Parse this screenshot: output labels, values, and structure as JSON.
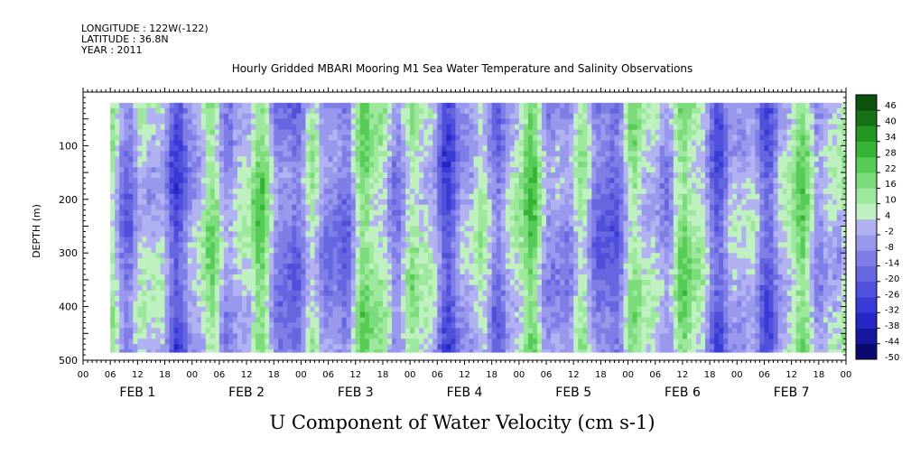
{
  "header": {
    "longitude": "LONGITUDE : 122W(-122)",
    "latitude": "LATITUDE : 36.8N",
    "year": "YEAR : 2011",
    "title": "Hourly Gridded MBARI Mooring M1 Sea Water Temperature and Salinity Observations"
  },
  "chart_data": {
    "type": "heatmap",
    "title": "Hourly Gridded MBARI Mooring M1 Sea Water Temperature and Salinity Observations",
    "xlabel": "U Component of Water Velocity (cm s-1)",
    "ylabel": "DEPTH (m)",
    "x_hour_ticks": [
      "00",
      "06",
      "12",
      "18",
      "00",
      "06",
      "12",
      "18",
      "00",
      "06",
      "12",
      "18",
      "00",
      "06",
      "12",
      "18",
      "00",
      "06",
      "12",
      "18",
      "00",
      "06",
      "12",
      "18",
      "00",
      "06",
      "12",
      "18",
      "00"
    ],
    "x_day_labels": [
      "FEB 1",
      "FEB 2",
      "FEB 3",
      "FEB 4",
      "FEB 5",
      "FEB 6",
      "FEB 7"
    ],
    "y_ticks": [
      100,
      200,
      300,
      400,
      500
    ],
    "y_tick_labels": [
      "100",
      "200",
      "300",
      "400",
      "500"
    ],
    "ylim": [
      500,
      0
    ],
    "x_range_hours": [
      0,
      168
    ],
    "data_x_range_hours": [
      6,
      167
    ],
    "data_y_range_m": [
      20,
      485
    ],
    "colorbar": {
      "levels": [
        -50,
        -44,
        -38,
        -32,
        -26,
        -20,
        -14,
        -8,
        -2,
        4,
        10,
        16,
        22,
        28,
        34,
        40,
        46
      ],
      "labels": [
        "46",
        "40",
        "34",
        "28",
        "22",
        "16",
        "10",
        "4",
        "-2",
        "-8",
        "-14",
        "-20",
        "-26",
        "-32",
        "-38",
        "-44",
        "-50"
      ],
      "min": -50,
      "max": 52
    },
    "grid": false,
    "colorbar_position": "right"
  }
}
